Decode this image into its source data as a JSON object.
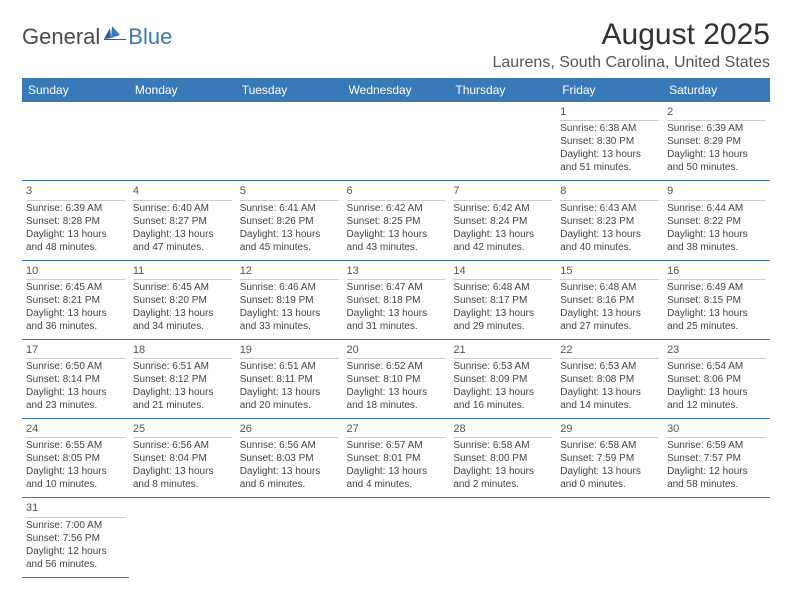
{
  "logo": {
    "word1": "General",
    "word2": "Blue"
  },
  "title": "August 2025",
  "location": "Laurens, South Carolina, United States",
  "colors": {
    "header_bg": "#3a79b7",
    "header_text": "#ffffff",
    "row_divider": "#3a79b7",
    "day_divider": "#cccccc",
    "text": "#444444",
    "logo_gray": "#4a4a4a",
    "logo_blue": "#3a79b7"
  },
  "weekdays": [
    "Sunday",
    "Monday",
    "Tuesday",
    "Wednesday",
    "Thursday",
    "Friday",
    "Saturday"
  ],
  "weeks": [
    [
      null,
      null,
      null,
      null,
      null,
      {
        "d": "1",
        "rise": "Sunrise: 6:38 AM",
        "set": "Sunset: 8:30 PM",
        "dl1": "Daylight: 13 hours",
        "dl2": "and 51 minutes."
      },
      {
        "d": "2",
        "rise": "Sunrise: 6:39 AM",
        "set": "Sunset: 8:29 PM",
        "dl1": "Daylight: 13 hours",
        "dl2": "and 50 minutes."
      }
    ],
    [
      {
        "d": "3",
        "rise": "Sunrise: 6:39 AM",
        "set": "Sunset: 8:28 PM",
        "dl1": "Daylight: 13 hours",
        "dl2": "and 48 minutes."
      },
      {
        "d": "4",
        "rise": "Sunrise: 6:40 AM",
        "set": "Sunset: 8:27 PM",
        "dl1": "Daylight: 13 hours",
        "dl2": "and 47 minutes."
      },
      {
        "d": "5",
        "rise": "Sunrise: 6:41 AM",
        "set": "Sunset: 8:26 PM",
        "dl1": "Daylight: 13 hours",
        "dl2": "and 45 minutes."
      },
      {
        "d": "6",
        "rise": "Sunrise: 6:42 AM",
        "set": "Sunset: 8:25 PM",
        "dl1": "Daylight: 13 hours",
        "dl2": "and 43 minutes."
      },
      {
        "d": "7",
        "rise": "Sunrise: 6:42 AM",
        "set": "Sunset: 8:24 PM",
        "dl1": "Daylight: 13 hours",
        "dl2": "and 42 minutes."
      },
      {
        "d": "8",
        "rise": "Sunrise: 6:43 AM",
        "set": "Sunset: 8:23 PM",
        "dl1": "Daylight: 13 hours",
        "dl2": "and 40 minutes."
      },
      {
        "d": "9",
        "rise": "Sunrise: 6:44 AM",
        "set": "Sunset: 8:22 PM",
        "dl1": "Daylight: 13 hours",
        "dl2": "and 38 minutes."
      }
    ],
    [
      {
        "d": "10",
        "rise": "Sunrise: 6:45 AM",
        "set": "Sunset: 8:21 PM",
        "dl1": "Daylight: 13 hours",
        "dl2": "and 36 minutes."
      },
      {
        "d": "11",
        "rise": "Sunrise: 6:45 AM",
        "set": "Sunset: 8:20 PM",
        "dl1": "Daylight: 13 hours",
        "dl2": "and 34 minutes."
      },
      {
        "d": "12",
        "rise": "Sunrise: 6:46 AM",
        "set": "Sunset: 8:19 PM",
        "dl1": "Daylight: 13 hours",
        "dl2": "and 33 minutes."
      },
      {
        "d": "13",
        "rise": "Sunrise: 6:47 AM",
        "set": "Sunset: 8:18 PM",
        "dl1": "Daylight: 13 hours",
        "dl2": "and 31 minutes."
      },
      {
        "d": "14",
        "rise": "Sunrise: 6:48 AM",
        "set": "Sunset: 8:17 PM",
        "dl1": "Daylight: 13 hours",
        "dl2": "and 29 minutes."
      },
      {
        "d": "15",
        "rise": "Sunrise: 6:48 AM",
        "set": "Sunset: 8:16 PM",
        "dl1": "Daylight: 13 hours",
        "dl2": "and 27 minutes."
      },
      {
        "d": "16",
        "rise": "Sunrise: 6:49 AM",
        "set": "Sunset: 8:15 PM",
        "dl1": "Daylight: 13 hours",
        "dl2": "and 25 minutes."
      }
    ],
    [
      {
        "d": "17",
        "rise": "Sunrise: 6:50 AM",
        "set": "Sunset: 8:14 PM",
        "dl1": "Daylight: 13 hours",
        "dl2": "and 23 minutes."
      },
      {
        "d": "18",
        "rise": "Sunrise: 6:51 AM",
        "set": "Sunset: 8:12 PM",
        "dl1": "Daylight: 13 hours",
        "dl2": "and 21 minutes."
      },
      {
        "d": "19",
        "rise": "Sunrise: 6:51 AM",
        "set": "Sunset: 8:11 PM",
        "dl1": "Daylight: 13 hours",
        "dl2": "and 20 minutes."
      },
      {
        "d": "20",
        "rise": "Sunrise: 6:52 AM",
        "set": "Sunset: 8:10 PM",
        "dl1": "Daylight: 13 hours",
        "dl2": "and 18 minutes."
      },
      {
        "d": "21",
        "rise": "Sunrise: 6:53 AM",
        "set": "Sunset: 8:09 PM",
        "dl1": "Daylight: 13 hours",
        "dl2": "and 16 minutes."
      },
      {
        "d": "22",
        "rise": "Sunrise: 6:53 AM",
        "set": "Sunset: 8:08 PM",
        "dl1": "Daylight: 13 hours",
        "dl2": "and 14 minutes."
      },
      {
        "d": "23",
        "rise": "Sunrise: 6:54 AM",
        "set": "Sunset: 8:06 PM",
        "dl1": "Daylight: 13 hours",
        "dl2": "and 12 minutes."
      }
    ],
    [
      {
        "d": "24",
        "rise": "Sunrise: 6:55 AM",
        "set": "Sunset: 8:05 PM",
        "dl1": "Daylight: 13 hours",
        "dl2": "and 10 minutes."
      },
      {
        "d": "25",
        "rise": "Sunrise: 6:56 AM",
        "set": "Sunset: 8:04 PM",
        "dl1": "Daylight: 13 hours",
        "dl2": "and 8 minutes."
      },
      {
        "d": "26",
        "rise": "Sunrise: 6:56 AM",
        "set": "Sunset: 8:03 PM",
        "dl1": "Daylight: 13 hours",
        "dl2": "and 6 minutes."
      },
      {
        "d": "27",
        "rise": "Sunrise: 6:57 AM",
        "set": "Sunset: 8:01 PM",
        "dl1": "Daylight: 13 hours",
        "dl2": "and 4 minutes."
      },
      {
        "d": "28",
        "rise": "Sunrise: 6:58 AM",
        "set": "Sunset: 8:00 PM",
        "dl1": "Daylight: 13 hours",
        "dl2": "and 2 minutes."
      },
      {
        "d": "29",
        "rise": "Sunrise: 6:58 AM",
        "set": "Sunset: 7:59 PM",
        "dl1": "Daylight: 13 hours",
        "dl2": "and 0 minutes."
      },
      {
        "d": "30",
        "rise": "Sunrise: 6:59 AM",
        "set": "Sunset: 7:57 PM",
        "dl1": "Daylight: 12 hours",
        "dl2": "and 58 minutes."
      }
    ],
    [
      {
        "d": "31",
        "rise": "Sunrise: 7:00 AM",
        "set": "Sunset: 7:56 PM",
        "dl1": "Daylight: 12 hours",
        "dl2": "and 56 minutes."
      },
      null,
      null,
      null,
      null,
      null,
      null
    ]
  ]
}
